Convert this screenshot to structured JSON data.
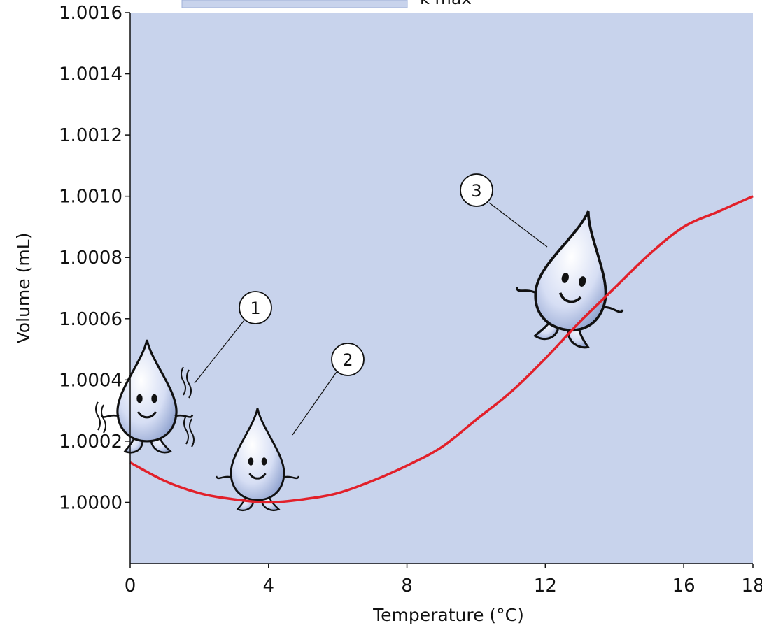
{
  "chart_data": {
    "type": "line",
    "title": "",
    "xlabel": "Temperature (°C)",
    "ylabel": "Volume (mL)",
    "xlim": [
      0,
      18
    ],
    "ylim": [
      0.9998,
      1.0016
    ],
    "x_ticks": [
      0,
      4,
      8,
      12,
      16,
      18
    ],
    "x_tick_labels": [
      "0",
      "4",
      "8",
      "12",
      "16",
      "18"
    ],
    "y_ticks": [
      1.0,
      1.0002,
      1.0004,
      1.0006,
      1.0008,
      1.001,
      1.0012,
      1.0014,
      1.0016
    ],
    "y_tick_labels": [
      "1.0000",
      "1.0002",
      "1.0004",
      "1.0006",
      "1.0008",
      "1.0010",
      "1.0012",
      "1.0014",
      "1.0016"
    ],
    "grid": false,
    "background_color": "#c8d3ec",
    "series": [
      {
        "color": "#e2202a",
        "x": [
          0,
          1,
          2,
          3,
          4,
          5,
          6,
          7,
          8,
          9,
          10,
          11,
          12,
          13,
          14,
          15,
          16,
          17,
          18
        ],
        "values": [
          1.00013,
          1.00007,
          1.00003,
          1.00001,
          1.0,
          1.00001,
          1.00003,
          1.00007,
          1.00012,
          1.00018,
          1.00027,
          1.00036,
          1.00047,
          1.00059,
          1.0007,
          1.00081,
          1.0009,
          1.00095,
          1.001
        ]
      }
    ],
    "annotations": [
      {
        "label": "1",
        "x": 0.6,
        "y": 1.00031,
        "description": "water droplet at about 0 °C"
      },
      {
        "label": "2",
        "x": 4.0,
        "y": 1.00012,
        "description": "water droplet at about 4 °C"
      },
      {
        "label": "3",
        "x": 14.3,
        "y": 1.00075,
        "description": "water droplet at about 14 °C"
      }
    ],
    "top_caption_partial": "k max"
  }
}
